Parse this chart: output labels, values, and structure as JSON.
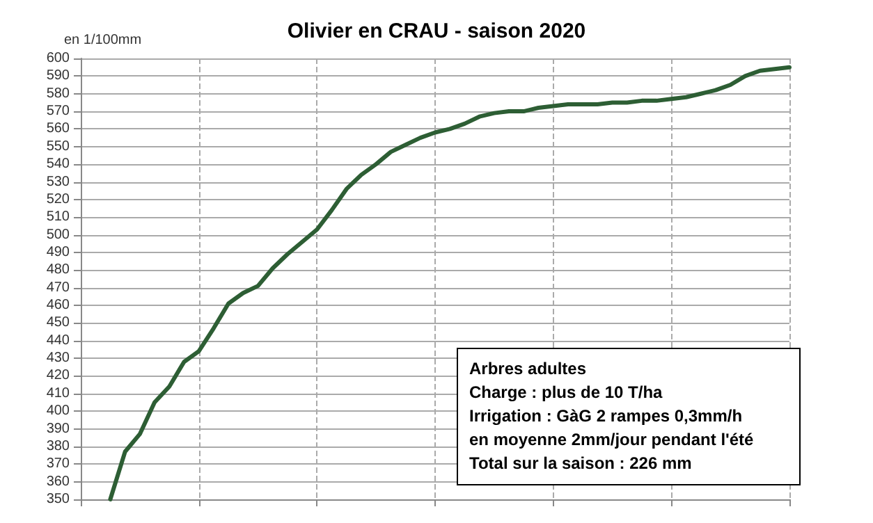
{
  "chart_data": {
    "type": "line",
    "title": "Olivier en CRAU - saison 2020",
    "ylabel": "en 1/100mm",
    "annotations": [
      "Arbres adultes",
      "Charge : plus de 10 T/ha",
      "Irrigation : GàG 2 rampes 0,3mm/h",
      "en moyenne 2mm/jour pendant l'été",
      "Total sur la saison : 226 mm"
    ],
    "categories": [
      null,
      null,
      null,
      null,
      null,
      null,
      null,
      null,
      null,
      null,
      null,
      null,
      null,
      null,
      null,
      null,
      null,
      null,
      null,
      null,
      null,
      null,
      null,
      null,
      null,
      null,
      null,
      null,
      null,
      null,
      null,
      null,
      null,
      null,
      null,
      null,
      null,
      null,
      null,
      null,
      null,
      null,
      null,
      null,
      null,
      null,
      null,
      null,
      null
    ],
    "series": [
      {
        "color": "#2d5e34",
        "values": [
          null,
          null,
          350,
          377,
          387,
          405,
          414,
          428,
          434,
          447,
          461,
          467,
          471,
          481,
          489,
          496,
          503,
          514,
          526,
          534,
          540,
          547,
          551,
          555,
          558,
          560,
          563,
          567,
          569,
          570,
          570,
          572,
          573,
          574,
          574,
          574,
          575,
          575,
          576,
          576,
          577,
          578,
          580,
          582,
          585,
          590,
          593,
          594,
          595
        ]
      }
    ],
    "ylim": [
      350,
      600
    ],
    "yticks": [
      350,
      360,
      370,
      380,
      390,
      400,
      410,
      420,
      430,
      440,
      450,
      460,
      470,
      480,
      490,
      500,
      510,
      520,
      530,
      540,
      550,
      560,
      570,
      580,
      590,
      600
    ],
    "grid": true,
    "tick_labels": "y",
    "marker": "none",
    "line_style": "solid"
  }
}
